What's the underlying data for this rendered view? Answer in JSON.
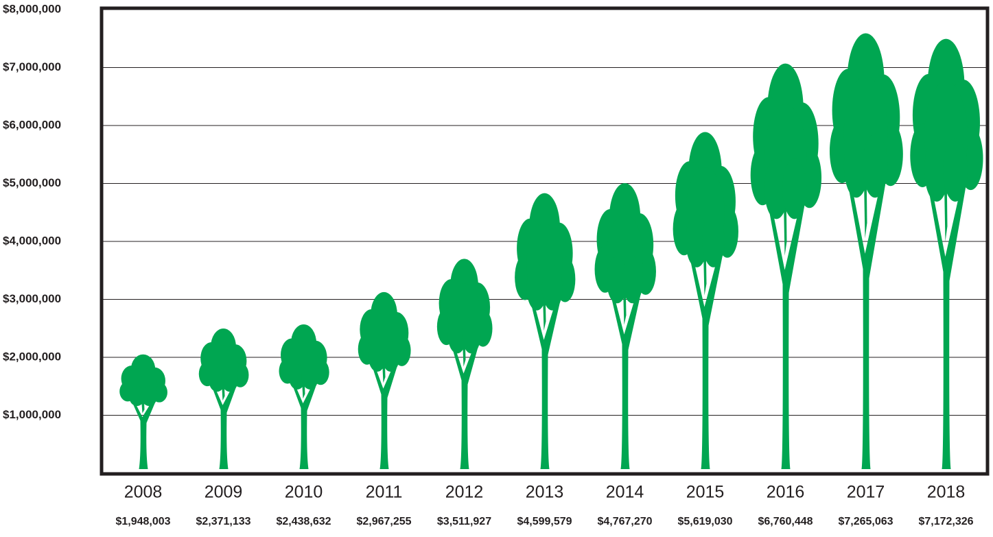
{
  "chart_data": {
    "type": "tree-pictogram",
    "categories": [
      "2008",
      "2009",
      "2010",
      "2011",
      "2012",
      "2013",
      "2014",
      "2015",
      "2016",
      "2017",
      "2018"
    ],
    "values": [
      1948003,
      2371133,
      2438632,
      2967255,
      3511927,
      4599579,
      4767270,
      5619030,
      6760448,
      7265063,
      7172326
    ],
    "value_labels": [
      "$1,948,003",
      "$2,371,133",
      "$2,438,632",
      "$2,967,255",
      "$3,511,927",
      "$4,599,579",
      "$4,767,270",
      "$5,619,030",
      "$6,760,448",
      "$7,265,063",
      "$7,172,326"
    ],
    "color": "#00a651",
    "ylim": [
      0,
      8000000
    ],
    "yticks": [
      {
        "value": 1000000,
        "label": "$1,000,000"
      },
      {
        "value": 2000000,
        "label": "$2,000,000"
      },
      {
        "value": 3000000,
        "label": "$3,000,000"
      },
      {
        "value": 4000000,
        "label": "$4,000,000"
      },
      {
        "value": 5000000,
        "label": "$5,000,000"
      },
      {
        "value": 6000000,
        "label": "$6,000,000"
      },
      {
        "value": 7000000,
        "label": "$7,000,000"
      },
      {
        "value": 8000000,
        "label": "$8,000,000"
      }
    ],
    "grid": true
  }
}
